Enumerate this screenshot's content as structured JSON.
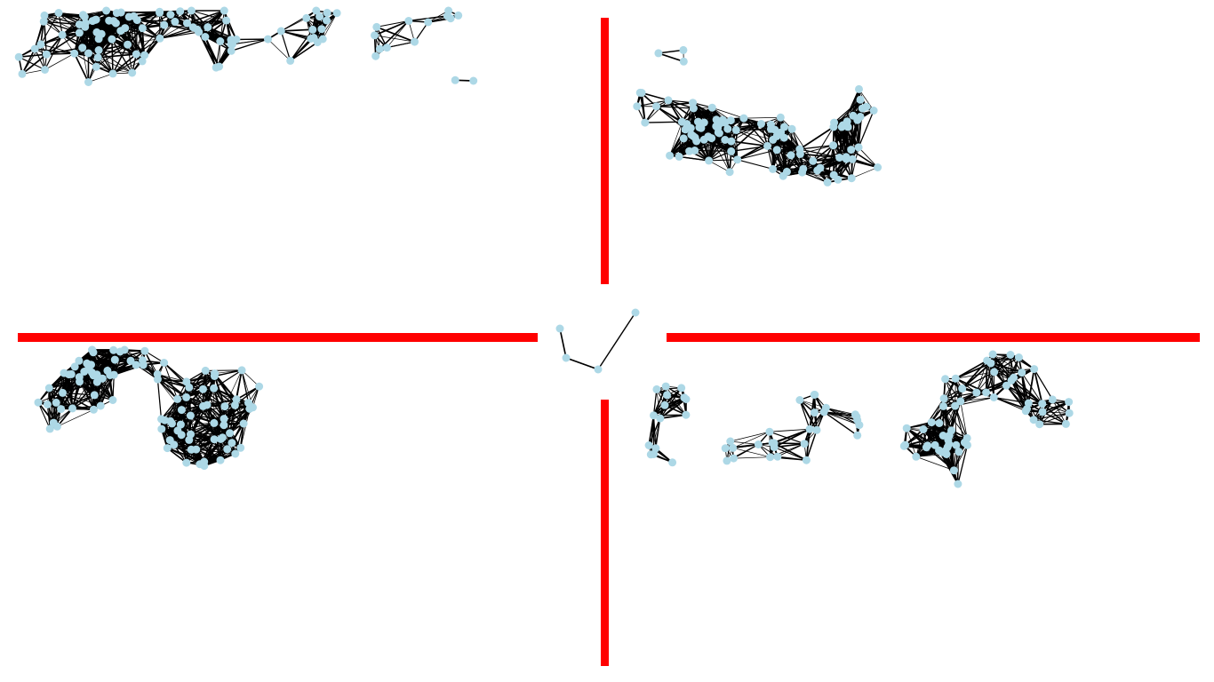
{
  "colors": {
    "background": "#ffffff",
    "node": "#add8e6",
    "edge": "#000000",
    "barrier": "#ff0000"
  },
  "graph": {
    "node_count": 408,
    "center_hub_nodes": 4,
    "regions": [
      {
        "id": "top-left"
      },
      {
        "id": "top-right"
      },
      {
        "id": "bottom-left"
      },
      {
        "id": "bottom-right"
      }
    ],
    "barriers": [
      {
        "id": "top-vertical"
      },
      {
        "id": "bottom-vertical"
      },
      {
        "id": "left-horizontal"
      },
      {
        "id": "right-horizontal"
      }
    ]
  }
}
